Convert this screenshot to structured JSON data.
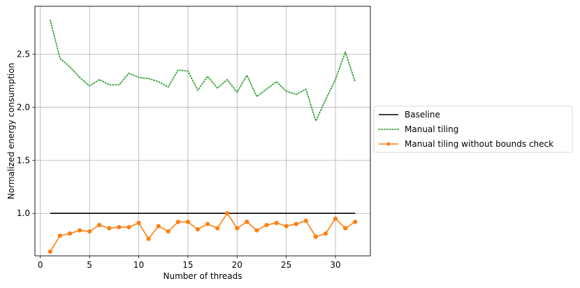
{
  "chart_data": {
    "type": "line",
    "xlabel": "Number of threads",
    "ylabel": "Normalized energy consumption",
    "xlim": [
      -0.55,
      33.55
    ],
    "ylim": [
      0.6,
      2.95
    ],
    "xticks": [
      0,
      5,
      10,
      15,
      20,
      25,
      30
    ],
    "yticks": [
      1.0,
      1.5,
      2.0,
      2.5
    ],
    "ytick_labels": [
      "1.0",
      "1.5",
      "2.0",
      "2.5"
    ],
    "grid": true,
    "legend_position": "outside-right",
    "x": [
      1,
      2,
      3,
      4,
      5,
      6,
      7,
      8,
      9,
      10,
      11,
      12,
      13,
      14,
      15,
      16,
      17,
      18,
      19,
      20,
      21,
      22,
      23,
      24,
      25,
      26,
      27,
      28,
      29,
      30,
      31,
      32
    ],
    "series": [
      {
        "name": "Baseline",
        "color": "#000000",
        "style": "solid",
        "marker": "none",
        "values": [
          1,
          1,
          1,
          1,
          1,
          1,
          1,
          1,
          1,
          1,
          1,
          1,
          1,
          1,
          1,
          1,
          1,
          1,
          1,
          1,
          1,
          1,
          1,
          1,
          1,
          1,
          1,
          1,
          1,
          1,
          1,
          1
        ]
      },
      {
        "name": "Manual tiling",
        "color": "#2ca02c",
        "style": "dotted",
        "marker": "none",
        "values": [
          2.82,
          2.46,
          2.38,
          2.28,
          2.2,
          2.26,
          2.21,
          2.21,
          2.32,
          2.28,
          2.27,
          2.24,
          2.19,
          2.35,
          2.34,
          2.16,
          2.29,
          2.18,
          2.26,
          2.14,
          2.3,
          2.1,
          2.17,
          2.24,
          2.15,
          2.12,
          2.17,
          1.87,
          2.07,
          2.26,
          2.52,
          2.24
        ]
      },
      {
        "name": "Manual tiling without bounds check",
        "color": "#ff7f0e",
        "style": "solid",
        "marker": "circle",
        "values": [
          0.64,
          0.79,
          0.81,
          0.84,
          0.83,
          0.89,
          0.86,
          0.87,
          0.87,
          0.91,
          0.76,
          0.88,
          0.83,
          0.92,
          0.92,
          0.85,
          0.9,
          0.86,
          1.0,
          0.86,
          0.92,
          0.84,
          0.89,
          0.91,
          0.88,
          0.9,
          0.93,
          0.78,
          0.81,
          0.95,
          0.86,
          0.92
        ]
      }
    ]
  }
}
